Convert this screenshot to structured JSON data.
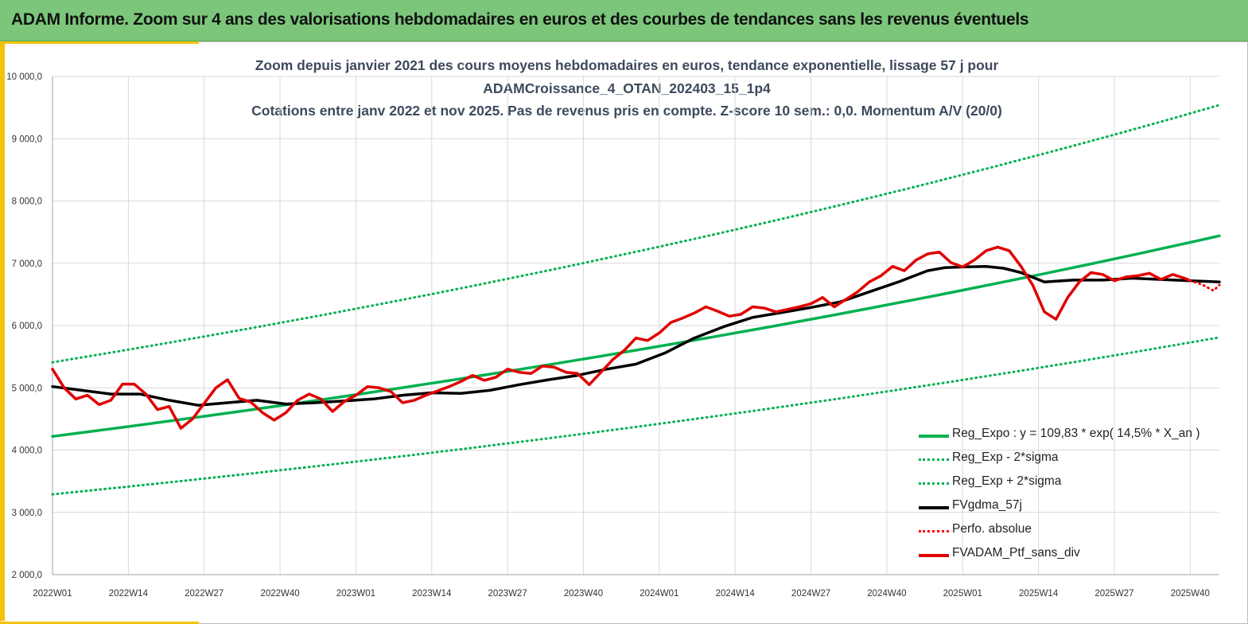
{
  "header": {
    "title": "ADAM Informe. Zoom sur 4 ans des valorisations hebdomadaires en euros et des courbes de tendances sans les revenus éventuels"
  },
  "chart_data": {
    "type": "line",
    "title_lines": [
      "Zoom depuis janvier 2021 des cours moyens hebdomadaires  en euros, tendance exponentielle, lissage 57 j pour",
      "ADAMCroissance_4_OTAN_202403_15_1p4",
      "Cotations  entre janv 2022 et nov 2025. Pas de revenus pris en compte. Z-score 10 sem.: 0,0. Momentum  A/V (20/0)"
    ],
    "xlabel": "",
    "ylabel": "",
    "ylim": [
      2000,
      10000
    ],
    "y_ticks": [
      "2 000,0",
      "3 000,0",
      "4 000,0",
      "5 000,0",
      "6 000,0",
      "7 000,0",
      "8 000,0",
      "9 000,0",
      "10 000,0"
    ],
    "x_tick_labels": [
      "2022W01",
      "2022W14",
      "2022W27",
      "2022W40",
      "2023W01",
      "2023W14",
      "2023W27",
      "2023W40",
      "2024W01",
      "2024W14",
      "2024W27",
      "2024W40",
      "2025W01",
      "2025W14",
      "2025W27",
      "2025W40"
    ],
    "x_unit": "week",
    "x_range": [
      0,
      200
    ],
    "grid": true,
    "legend_position": "bottom-right",
    "series": [
      {
        "name": "Reg_Expo : y = 109,83 * exp( 14,5% *  X_an )",
        "color": "#00b050",
        "style": "solid",
        "x": [
          0,
          200
        ],
        "values": [
          4220,
          7440
        ]
      },
      {
        "name": "Reg_Exp - 2*sigma",
        "color": "#00b050",
        "style": "dotted",
        "x": [
          0,
          200
        ],
        "values": [
          3290,
          5810
        ]
      },
      {
        "name": "Reg_Exp + 2*sigma",
        "color": "#00b050",
        "style": "dotted",
        "x": [
          0,
          200
        ],
        "values": [
          5410,
          9540
        ]
      },
      {
        "name": "FVgdma_57j",
        "color": "#000000",
        "style": "solid",
        "x": [
          0,
          5,
          10,
          15,
          20,
          25,
          30,
          35,
          40,
          45,
          50,
          55,
          60,
          65,
          70,
          75,
          80,
          85,
          90,
          95,
          100,
          105,
          110,
          115,
          120,
          125,
          130,
          135,
          140,
          145,
          150,
          153,
          156,
          160,
          163,
          166,
          170,
          175,
          180,
          185,
          190,
          195,
          200
        ],
        "values": [
          5020,
          4960,
          4900,
          4900,
          4800,
          4720,
          4760,
          4800,
          4740,
          4760,
          4790,
          4820,
          4880,
          4920,
          4910,
          4960,
          5050,
          5130,
          5200,
          5300,
          5380,
          5560,
          5800,
          5980,
          6130,
          6210,
          6290,
          6380,
          6540,
          6700,
          6880,
          6930,
          6940,
          6950,
          6920,
          6850,
          6700,
          6730,
          6730,
          6760,
          6740,
          6720,
          6700
        ]
      },
      {
        "name": "Perfo. absolue",
        "color": "#ff0000",
        "style": "dotted",
        "x": [
          195,
          197,
          199,
          200
        ],
        "values": [
          6720,
          6660,
          6560,
          6650
        ]
      },
      {
        "name": "FVADAM_Ptf_sans_div",
        "color": "#e00000",
        "style": "solid",
        "x": [
          0,
          2,
          4,
          6,
          8,
          10,
          12,
          14,
          16,
          18,
          20,
          22,
          24,
          26,
          28,
          30,
          32,
          34,
          36,
          38,
          40,
          42,
          44,
          46,
          48,
          50,
          52,
          54,
          56,
          58,
          60,
          62,
          64,
          66,
          68,
          70,
          72,
          74,
          76,
          78,
          80,
          82,
          84,
          86,
          88,
          90,
          92,
          94,
          96,
          98,
          100,
          102,
          104,
          106,
          108,
          110,
          112,
          114,
          116,
          118,
          120,
          122,
          124,
          126,
          128,
          130,
          132,
          134,
          136,
          138,
          140,
          142,
          144,
          146,
          148,
          150,
          152,
          154,
          156,
          158,
          160,
          162,
          164,
          166,
          168,
          170,
          172,
          174,
          176,
          178,
          180,
          182,
          184,
          186,
          188,
          190,
          192,
          194,
          195
        ],
        "values": [
          5300,
          5000,
          4820,
          4880,
          4730,
          4800,
          5060,
          5060,
          4900,
          4650,
          4700,
          4350,
          4500,
          4750,
          5000,
          5130,
          4830,
          4770,
          4600,
          4480,
          4600,
          4800,
          4900,
          4820,
          4620,
          4780,
          4880,
          5020,
          5000,
          4940,
          4760,
          4800,
          4880,
          4950,
          5020,
          5100,
          5200,
          5120,
          5170,
          5300,
          5250,
          5230,
          5350,
          5330,
          5250,
          5230,
          5050,
          5250,
          5450,
          5600,
          5800,
          5760,
          5880,
          6050,
          6120,
          6200,
          6300,
          6230,
          6150,
          6180,
          6300,
          6280,
          6220,
          6260,
          6300,
          6350,
          6450,
          6300,
          6420,
          6540,
          6700,
          6800,
          6950,
          6880,
          7050,
          7150,
          7180,
          7010,
          6940,
          7050,
          7200,
          7260,
          7200,
          6950,
          6650,
          6220,
          6100,
          6450,
          6700,
          6850,
          6820,
          6720,
          6780,
          6800,
          6840,
          6740,
          6820,
          6760,
          6720
        ]
      }
    ]
  }
}
